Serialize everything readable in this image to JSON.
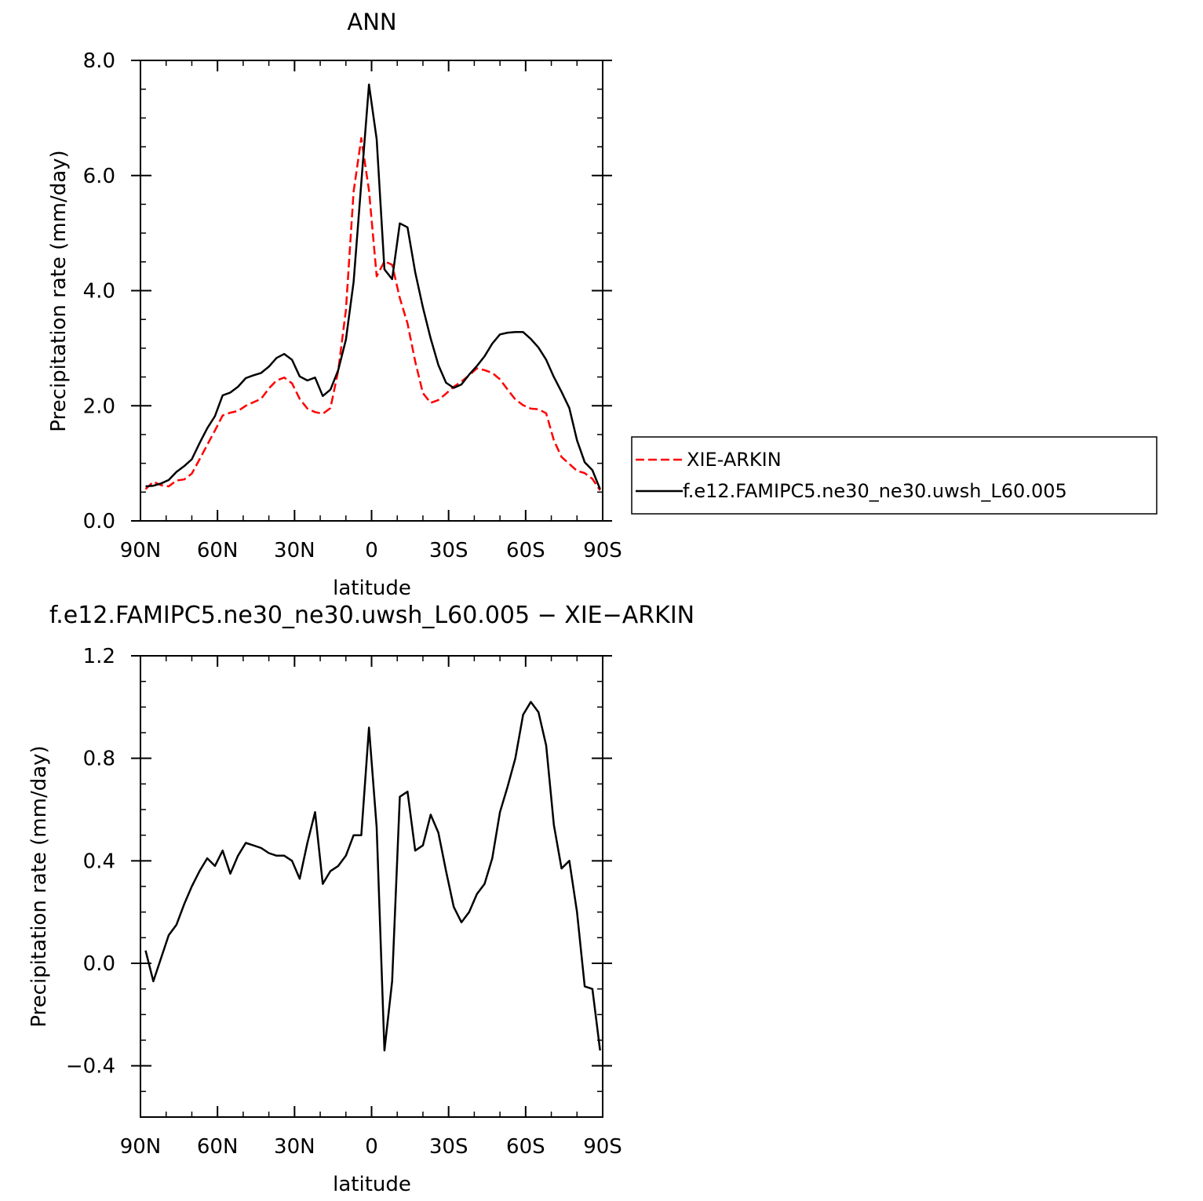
{
  "chart_data": [
    {
      "type": "line",
      "title": "ANN",
      "xlabel": "latitude",
      "ylabel": "Precipitation rate (mm/day)",
      "xlim": [
        90,
        -90
      ],
      "ylim": [
        0,
        8
      ],
      "x_ticks": [
        {
          "value": 90,
          "label": "90N"
        },
        {
          "value": 60,
          "label": "60N"
        },
        {
          "value": 30,
          "label": "30N"
        },
        {
          "value": 0,
          "label": "0"
        },
        {
          "value": -30,
          "label": "30S"
        },
        {
          "value": -60,
          "label": "60S"
        },
        {
          "value": -90,
          "label": "90S"
        }
      ],
      "y_ticks": [
        {
          "value": 0,
          "label": "0.0"
        },
        {
          "value": 2,
          "label": "2.0"
        },
        {
          "value": 4,
          "label": "4.0"
        },
        {
          "value": 6,
          "label": "6.0"
        },
        {
          "value": 8,
          "label": "8.0"
        }
      ],
      "legend_position": "right-outside",
      "grid": false,
      "x": [
        88,
        85,
        82,
        79,
        76,
        73,
        70,
        67,
        64,
        61,
        58,
        55,
        52,
        49,
        46,
        43,
        40,
        37,
        34,
        31,
        28,
        25,
        22,
        19,
        16,
        13,
        10,
        7,
        4,
        1,
        -2,
        -5,
        -8,
        -11,
        -14,
        -17,
        -20,
        -23,
        -26,
        -29,
        -32,
        -35,
        -38,
        -41,
        -44,
        -47,
        -50,
        -53,
        -56,
        -59,
        -62,
        -65,
        -68,
        -71,
        -74,
        -77,
        -80,
        -83,
        -86,
        -89
      ],
      "series": [
        {
          "name": "XIE-ARKIN",
          "color": "#ff0000",
          "dash": "dashed",
          "values": [
            0.55,
            0.68,
            0.62,
            0.6,
            0.7,
            0.72,
            0.82,
            1.07,
            1.32,
            1.57,
            1.83,
            1.88,
            1.91,
            2.0,
            2.06,
            2.12,
            2.3,
            2.44,
            2.49,
            2.39,
            2.12,
            1.95,
            1.89,
            1.86,
            1.96,
            2.61,
            3.66,
            5.72,
            6.65,
            5.74,
            4.25,
            4.51,
            4.45,
            3.87,
            3.43,
            2.77,
            2.22,
            2.05,
            2.1,
            2.21,
            2.33,
            2.42,
            2.53,
            2.65,
            2.62,
            2.57,
            2.46,
            2.28,
            2.11,
            2.01,
            1.95,
            1.94,
            1.87,
            1.4,
            1.11,
            0.99,
            0.87,
            0.83,
            0.73,
            0.53
          ]
        },
        {
          "name": "f.e12.FAMIPC5.ne30_ne30.uwsh_L60.005",
          "color": "#000000",
          "dash": "solid",
          "values": [
            0.6,
            0.61,
            0.65,
            0.71,
            0.85,
            0.95,
            1.07,
            1.35,
            1.61,
            1.82,
            2.18,
            2.23,
            2.33,
            2.48,
            2.53,
            2.57,
            2.68,
            2.83,
            2.9,
            2.8,
            2.51,
            2.44,
            2.49,
            2.17,
            2.28,
            2.62,
            3.15,
            4.15,
            5.87,
            7.58,
            6.63,
            4.37,
            4.2,
            5.17,
            5.1,
            4.32,
            3.71,
            3.17,
            2.71,
            2.4,
            2.31,
            2.37,
            2.54,
            2.69,
            2.86,
            3.08,
            3.24,
            3.27,
            3.28,
            3.28,
            3.16,
            3.01,
            2.8,
            2.5,
            2.24,
            1.96,
            1.4,
            1.02,
            0.88,
            0.55
          ]
        }
      ]
    },
    {
      "type": "line",
      "title": "f.e12.FAMIPC5.ne30_ne30.uwsh_L60.005 − XIE−ARKIN",
      "xlabel": "latitude",
      "ylabel": "Precipitation rate (mm/day)",
      "xlim": [
        90,
        -90
      ],
      "ylim": [
        -0.6,
        1.2
      ],
      "x_ticks": [
        {
          "value": 90,
          "label": "90N"
        },
        {
          "value": 60,
          "label": "60N"
        },
        {
          "value": 30,
          "label": "30N"
        },
        {
          "value": 0,
          "label": "0"
        },
        {
          "value": -30,
          "label": "30S"
        },
        {
          "value": -60,
          "label": "60S"
        },
        {
          "value": -90,
          "label": "90S"
        }
      ],
      "y_ticks": [
        {
          "value": -0.4,
          "label": "−0.4"
        },
        {
          "value": 0.0,
          "label": "0.0"
        },
        {
          "value": 0.4,
          "label": "0.4"
        },
        {
          "value": 0.8,
          "label": "0.8"
        },
        {
          "value": 1.2,
          "label": "1.2"
        }
      ],
      "grid": false,
      "x": [
        88,
        85,
        82,
        79,
        76,
        73,
        70,
        67,
        64,
        61,
        58,
        55,
        52,
        49,
        46,
        43,
        40,
        37,
        34,
        31,
        28,
        25,
        22,
        19,
        16,
        13,
        10,
        7,
        4,
        1,
        -2,
        -5,
        -8,
        -11,
        -14,
        -17,
        -20,
        -23,
        -26,
        -29,
        -32,
        -35,
        -38,
        -41,
        -44,
        -47,
        -50,
        -53,
        -56,
        -59,
        -62,
        -65,
        -68,
        -71,
        -74,
        -77,
        -80,
        -83,
        -86,
        -89
      ],
      "series": [
        {
          "color": "#000000",
          "dash": "solid",
          "values": [
            0.05,
            -0.07,
            0.02,
            0.11,
            0.15,
            0.23,
            0.3,
            0.36,
            0.41,
            0.38,
            0.44,
            0.35,
            0.42,
            0.47,
            0.46,
            0.45,
            0.43,
            0.42,
            0.42,
            0.4,
            0.33,
            0.47,
            0.59,
            0.31,
            0.36,
            0.38,
            0.42,
            0.5,
            0.5,
            0.92,
            0.53,
            -0.34,
            -0.07,
            0.65,
            0.67,
            0.44,
            0.46,
            0.58,
            0.51,
            0.36,
            0.22,
            0.16,
            0.2,
            0.27,
            0.31,
            0.41,
            0.59,
            0.69,
            0.8,
            0.97,
            1.02,
            0.98,
            0.85,
            0.54,
            0.37,
            0.4,
            0.2,
            -0.09,
            -0.1,
            -0.34
          ]
        }
      ]
    }
  ]
}
